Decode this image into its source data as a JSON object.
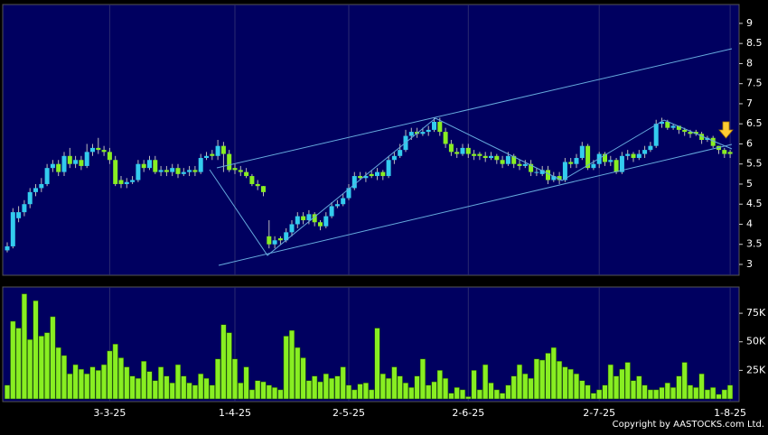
{
  "chart_data": [
    {
      "type": "candlestick",
      "categories": [
        null,
        null,
        null,
        null,
        null,
        null,
        null,
        null,
        null,
        null,
        null,
        null,
        null,
        null,
        null,
        null,
        null,
        null,
        "3-3-25",
        null,
        null,
        null,
        null,
        null,
        null,
        null,
        null,
        null,
        null,
        null,
        null,
        null,
        null,
        null,
        null,
        null,
        null,
        null,
        null,
        null,
        "1-4-25",
        null,
        null,
        null,
        null,
        null,
        null,
        null,
        null,
        null,
        null,
        null,
        null,
        null,
        null,
        null,
        null,
        null,
        null,
        null,
        "2-5-25",
        null,
        null,
        null,
        null,
        null,
        null,
        null,
        null,
        null,
        null,
        null,
        null,
        null,
        null,
        null,
        null,
        null,
        null,
        null,
        null,
        "2-6-25",
        null,
        null,
        null,
        null,
        null,
        null,
        null,
        null,
        null,
        null,
        null,
        null,
        null,
        null,
        null,
        null,
        null,
        null,
        null,
        null,
        null,
        null,
        "2-7-25",
        null,
        null,
        null,
        null,
        null,
        null,
        null,
        null,
        null,
        null,
        null,
        null,
        null,
        null,
        null,
        null,
        null,
        null,
        null,
        null,
        null,
        null,
        "1-8-25"
      ],
      "open": [
        3.35,
        3.45,
        4.15,
        4.3,
        4.5,
        4.8,
        4.9,
        5.0,
        5.4,
        5.5,
        5.3,
        5.7,
        5.5,
        5.6,
        5.45,
        5.8,
        5.9,
        5.85,
        5.8,
        5.6,
        5.1,
        5.0,
        5.05,
        5.1,
        5.5,
        5.4,
        5.6,
        5.3,
        5.35,
        5.3,
        5.4,
        5.25,
        5.3,
        5.35,
        5.3,
        5.65,
        5.75,
        5.7,
        5.95,
        5.75,
        5.4,
        5.35,
        5.3,
        5.2,
        5.0,
        4.95,
        3.7,
        3.5,
        3.65,
        3.6,
        3.8,
        4.0,
        4.2,
        4.1,
        4.25,
        4.05,
        3.95,
        4.2,
        4.45,
        4.5,
        4.65,
        4.9,
        5.2,
        5.15,
        5.25,
        5.2,
        5.3,
        5.2,
        5.6,
        5.7,
        5.85,
        6.2,
        6.3,
        6.25,
        6.3,
        6.35,
        6.55,
        6.3,
        6.0,
        5.8,
        5.75,
        5.9,
        5.75,
        5.75,
        5.7,
        5.65,
        5.7,
        5.6,
        5.5,
        5.7,
        5.5,
        5.45,
        5.5,
        5.3,
        5.25,
        5.35,
        5.1,
        5.2,
        5.1,
        5.55,
        5.5,
        5.65,
        5.95,
        5.4,
        5.5,
        5.75,
        5.55,
        5.6,
        5.3,
        5.7,
        5.75,
        5.65,
        5.75,
        5.85,
        5.95,
        6.5,
        6.55,
        6.4,
        6.45,
        6.35,
        6.3,
        6.3,
        6.25,
        6.1,
        6.15,
        5.95,
        5.85,
        5.8
      ],
      "high": [
        3.55,
        4.4,
        4.45,
        4.6,
        4.9,
        5.0,
        5.15,
        5.5,
        5.6,
        5.6,
        5.8,
        5.9,
        5.7,
        5.7,
        6.0,
        6.0,
        6.15,
        5.95,
        5.9,
        5.7,
        5.2,
        5.15,
        5.2,
        5.6,
        5.6,
        5.7,
        5.7,
        5.45,
        5.45,
        5.5,
        5.5,
        5.4,
        5.45,
        5.45,
        5.75,
        5.8,
        5.85,
        6.1,
        6.05,
        5.85,
        5.5,
        5.45,
        5.4,
        5.25,
        5.1,
        4.95,
        4.1,
        3.7,
        3.7,
        3.9,
        4.1,
        4.3,
        4.3,
        4.35,
        4.3,
        4.1,
        4.3,
        4.55,
        4.6,
        4.75,
        5.0,
        5.3,
        5.3,
        5.3,
        5.35,
        5.4,
        5.35,
        5.7,
        5.8,
        6.0,
        6.35,
        6.4,
        6.4,
        6.4,
        6.45,
        6.65,
        6.65,
        6.4,
        6.1,
        5.9,
        6.0,
        6.0,
        5.85,
        5.8,
        5.8,
        5.8,
        5.75,
        5.7,
        5.8,
        5.75,
        5.6,
        5.6,
        5.6,
        5.4,
        5.45,
        5.45,
        5.3,
        5.3,
        5.65,
        5.65,
        5.75,
        6.05,
        6.0,
        5.6,
        5.8,
        5.8,
        5.7,
        5.65,
        5.8,
        5.85,
        5.8,
        5.85,
        5.95,
        6.05,
        6.6,
        6.65,
        6.6,
        6.5,
        6.45,
        6.4,
        6.35,
        6.35,
        6.3,
        6.2,
        6.2,
        5.95,
        5.9,
        5.85
      ],
      "low": [
        3.3,
        3.4,
        4.05,
        4.2,
        4.4,
        4.7,
        4.8,
        4.95,
        5.3,
        5.2,
        5.2,
        5.4,
        5.4,
        5.35,
        5.4,
        5.7,
        5.75,
        5.7,
        5.5,
        4.95,
        4.9,
        4.9,
        5.0,
        5.05,
        5.3,
        5.35,
        5.25,
        5.2,
        5.2,
        5.2,
        5.15,
        5.2,
        5.2,
        5.2,
        5.25,
        5.6,
        5.6,
        5.6,
        5.3,
        5.3,
        5.25,
        5.2,
        5.15,
        4.95,
        4.85,
        4.7,
        3.4,
        3.4,
        3.5,
        3.55,
        3.7,
        3.9,
        4.0,
        4.0,
        3.95,
        3.85,
        3.9,
        4.15,
        4.4,
        4.45,
        4.6,
        4.85,
        5.1,
        5.05,
        5.15,
        5.1,
        5.1,
        5.15,
        5.5,
        5.65,
        5.8,
        6.1,
        6.15,
        6.2,
        6.2,
        6.3,
        6.2,
        5.9,
        5.7,
        5.65,
        5.7,
        5.65,
        5.6,
        5.6,
        5.55,
        5.6,
        5.5,
        5.4,
        5.45,
        5.4,
        5.35,
        5.4,
        5.2,
        5.2,
        5.2,
        5.0,
        5.05,
        5.0,
        5.05,
        5.4,
        5.4,
        5.6,
        5.35,
        5.35,
        5.4,
        5.45,
        5.45,
        5.25,
        5.25,
        5.6,
        5.55,
        5.6,
        5.65,
        5.8,
        5.9,
        6.4,
        6.35,
        6.35,
        6.25,
        6.2,
        6.15,
        6.2,
        6.0,
        6.05,
        5.9,
        5.75,
        5.65,
        5.65
      ],
      "close": [
        3.45,
        4.3,
        4.3,
        4.5,
        4.8,
        4.9,
        5.0,
        5.4,
        5.5,
        5.3,
        5.7,
        5.5,
        5.6,
        5.45,
        5.8,
        5.9,
        5.85,
        5.8,
        5.6,
        5.0,
        5.0,
        5.05,
        5.1,
        5.5,
        5.4,
        5.6,
        5.3,
        5.35,
        5.3,
        5.4,
        5.25,
        5.3,
        5.35,
        5.3,
        5.65,
        5.7,
        5.7,
        5.95,
        5.75,
        5.35,
        5.35,
        5.3,
        5.2,
        5.0,
        4.95,
        4.8,
        3.5,
        3.6,
        3.6,
        3.8,
        4.0,
        4.2,
        4.1,
        4.25,
        4.05,
        3.95,
        4.2,
        4.45,
        4.5,
        4.65,
        4.9,
        5.2,
        5.15,
        5.2,
        5.2,
        5.3,
        5.2,
        5.6,
        5.7,
        5.85,
        6.2,
        6.3,
        6.25,
        6.3,
        6.35,
        6.55,
        6.3,
        6.0,
        5.8,
        5.75,
        5.9,
        5.75,
        5.7,
        5.7,
        5.65,
        5.7,
        5.6,
        5.5,
        5.7,
        5.5,
        5.45,
        5.5,
        5.3,
        5.3,
        5.35,
        5.1,
        5.2,
        5.1,
        5.55,
        5.5,
        5.65,
        5.95,
        5.4,
        5.5,
        5.75,
        5.55,
        5.6,
        5.3,
        5.7,
        5.75,
        5.65,
        5.75,
        5.85,
        5.95,
        6.5,
        6.55,
        6.4,
        6.45,
        6.35,
        6.3,
        6.25,
        6.25,
        6.1,
        6.15,
        5.95,
        5.85,
        5.75,
        5.75
      ],
      "up_color": "#33ccee",
      "down_color": "#88ee22",
      "ylim": [
        2.73,
        9.47
      ],
      "yticks": [
        3,
        3.5,
        4,
        4.5,
        5,
        5.5,
        6,
        6.5,
        7,
        7.5,
        8,
        8.5,
        9
      ]
    },
    {
      "type": "bar",
      "values": [
        12000,
        68000,
        62000,
        92000,
        52000,
        86000,
        55000,
        58000,
        72000,
        45000,
        38000,
        22000,
        30000,
        26000,
        22000,
        28000,
        25000,
        30000,
        42000,
        48000,
        36000,
        28000,
        20000,
        18000,
        33000,
        24000,
        16000,
        28000,
        20000,
        14000,
        30000,
        20000,
        14000,
        12000,
        22000,
        18000,
        12000,
        35000,
        65000,
        58000,
        35000,
        14000,
        28000,
        8000,
        16000,
        15000,
        12000,
        10000,
        8000,
        55000,
        60000,
        45000,
        36000,
        16000,
        20000,
        15000,
        22000,
        18000,
        20000,
        28000,
        12000,
        8000,
        13000,
        14000,
        8000,
        62000,
        22000,
        18000,
        28000,
        20000,
        14000,
        10000,
        20000,
        35000,
        12000,
        15000,
        25000,
        18000,
        5000,
        10000,
        8000,
        2000,
        25000,
        8000,
        30000,
        14000,
        8000,
        5000,
        12000,
        20000,
        30000,
        22000,
        18000,
        35000,
        34000,
        40000,
        45000,
        33000,
        28000,
        26000,
        22000,
        16000,
        12000,
        5000,
        8000,
        12000,
        30000,
        20000,
        26000,
        32000,
        16000,
        20000,
        12000,
        8000,
        8000,
        10000,
        14000,
        10000,
        20000,
        32000,
        12000,
        10000,
        22000,
        8000,
        10000,
        4000,
        8000,
        12000
      ],
      "color": "#88ee22",
      "ylim": [
        0,
        98000
      ],
      "yticks": [
        {
          "value": 25000,
          "label": "25K"
        },
        {
          "value": 50000,
          "label": "50K"
        },
        {
          "value": 75000,
          "label": "75K"
        }
      ]
    }
  ],
  "footer": {
    "copyright": "Copyright by AASTOCKS.com Ltd."
  }
}
